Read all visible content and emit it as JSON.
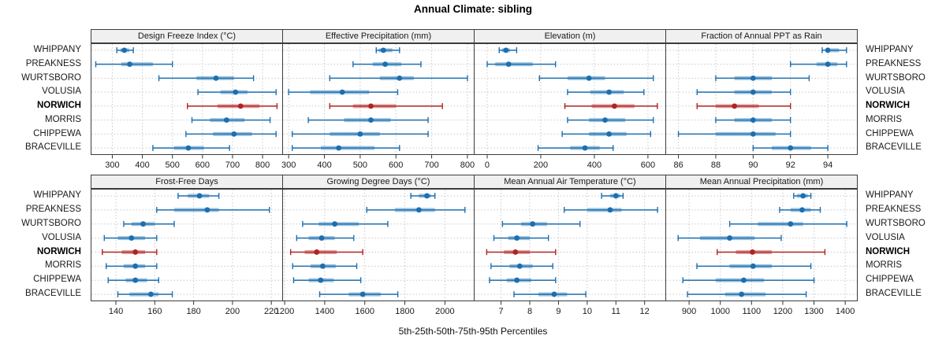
{
  "title": "Annual Climate: sibling",
  "xlabel": "5th-25th-50th-75th-95th Percentiles",
  "stations": [
    "WHIPPANY",
    "PREAKNESS",
    "WURTSBORO",
    "VOLUSIA",
    "NORWICH",
    "MORRIS",
    "CHIPPEWA",
    "BRACEVILLE"
  ],
  "highlight_station": "NORWICH",
  "percentile_levels": [
    "5th",
    "25th",
    "50th",
    "75th",
    "95th"
  ],
  "colors": {
    "series_normal": "#1b6fb0",
    "series_highlight": "#b22222",
    "band_opacity": 0.42,
    "gridline": "#c9c9c9",
    "panel_border": "#3c3c3c",
    "strip_bg": "#f0f0f0",
    "tick": "#333333",
    "text": "#1a1a1a"
  },
  "chart_data": [
    {
      "type": "percentile-dotplot",
      "title": "Design Freeze Index (°C)",
      "row": 0,
      "xlim": [
        228,
        868
      ],
      "ticks": [
        300,
        400,
        500,
        600,
        700,
        800
      ],
      "tick_labels": [
        "300",
        "400",
        "500",
        "600",
        "700",
        "800"
      ],
      "values": [
        [
          315,
          327,
          340,
          356,
          370
        ],
        [
          245,
          330,
          358,
          435,
          500
        ],
        [
          455,
          580,
          645,
          705,
          770
        ],
        [
          585,
          660,
          710,
          750,
          845
        ],
        [
          550,
          650,
          727,
          790,
          848
        ],
        [
          565,
          625,
          680,
          740,
          825
        ],
        [
          545,
          635,
          705,
          765,
          845
        ],
        [
          435,
          505,
          553,
          605,
          690
        ]
      ]
    },
    {
      "type": "percentile-dotplot",
      "title": "Effective Precipitation (mm)",
      "row": 0,
      "xlim": [
        282,
        820
      ],
      "ticks": [
        300,
        400,
        500,
        600,
        700,
        800
      ],
      "tick_labels": [
        "300",
        "400",
        "500",
        "600",
        "700",
        "800"
      ],
      "values": [
        [
          545,
          552,
          565,
          590,
          610
        ],
        [
          480,
          535,
          570,
          615,
          670
        ],
        [
          415,
          555,
          610,
          650,
          800
        ],
        [
          300,
          360,
          450,
          525,
          605
        ],
        [
          415,
          480,
          530,
          600,
          730
        ],
        [
          355,
          455,
          530,
          585,
          690
        ],
        [
          310,
          415,
          500,
          555,
          690
        ],
        [
          310,
          390,
          440,
          540,
          610
        ]
      ]
    },
    {
      "type": "percentile-dotplot",
      "title": "Elevation (m)",
      "row": 0,
      "xlim": [
        -50,
        668
      ],
      "ticks": [
        0,
        200,
        400,
        600
      ],
      "tick_labels": [
        "0",
        "200",
        "400",
        "600"
      ],
      "values": [
        [
          45,
          55,
          70,
          85,
          110
        ],
        [
          0,
          30,
          80,
          170,
          255
        ],
        [
          195,
          300,
          380,
          440,
          620
        ],
        [
          300,
          385,
          455,
          510,
          585
        ],
        [
          290,
          390,
          475,
          550,
          635
        ],
        [
          300,
          380,
          440,
          515,
          620
        ],
        [
          280,
          380,
          455,
          520,
          610
        ],
        [
          190,
          310,
          365,
          420,
          470
        ]
      ]
    },
    {
      "type": "percentile-dotplot",
      "title": "Fraction of Annual PPT as Rain",
      "row": 0,
      "xlim": [
        85.3,
        95.6
      ],
      "ticks": [
        86,
        88,
        90,
        92,
        94
      ],
      "tick_labels": [
        "86",
        "88",
        "90",
        "92",
        "94"
      ],
      "values": [
        [
          93.7,
          93.9,
          94.0,
          94.6,
          95.0
        ],
        [
          92.0,
          93.4,
          94.0,
          94.5,
          95.0
        ],
        [
          88.0,
          89.0,
          90.0,
          91.0,
          93.0
        ],
        [
          87.0,
          89.0,
          90.0,
          91.0,
          92.0
        ],
        [
          87.0,
          88.0,
          89.0,
          90.3,
          92.0
        ],
        [
          88.0,
          89.0,
          90.0,
          91.0,
          92.0
        ],
        [
          86.0,
          88.0,
          90.0,
          91.2,
          92.0
        ],
        [
          90.0,
          91.0,
          92.0,
          93.1,
          94.0
        ]
      ]
    },
    {
      "type": "percentile-dotplot",
      "title": "Frost-Free Days",
      "row": 1,
      "xlim": [
        127,
        226
      ],
      "ticks": [
        140,
        160,
        180,
        200,
        220
      ],
      "tick_labels": [
        "140",
        "160",
        "180",
        "200",
        "220"
      ],
      "values": [
        [
          172,
          177,
          183,
          188,
          193
        ],
        [
          161,
          170,
          187,
          193,
          219
        ],
        [
          144,
          148,
          154,
          160,
          170
        ],
        [
          134,
          141,
          148,
          155,
          161
        ],
        [
          133,
          143,
          150,
          155,
          161
        ],
        [
          135,
          144,
          150,
          155,
          161
        ],
        [
          136,
          145,
          150,
          156,
          162
        ],
        [
          141,
          147,
          158,
          162,
          169
        ]
      ]
    },
    {
      "type": "percentile-dotplot",
      "title": "Growing Degree Days (°C)",
      "row": 1,
      "xlim": [
        1188,
        2148
      ],
      "ticks": [
        1200,
        1400,
        1600,
        1800,
        2000
      ],
      "tick_labels": [
        "1200",
        "1400",
        "1600",
        "1800",
        "2000"
      ],
      "values": [
        [
          1830,
          1870,
          1910,
          1930,
          1950
        ],
        [
          1610,
          1750,
          1870,
          1950,
          2100
        ],
        [
          1290,
          1370,
          1450,
          1570,
          1715
        ],
        [
          1260,
          1320,
          1385,
          1450,
          1545
        ],
        [
          1230,
          1300,
          1360,
          1460,
          1590
        ],
        [
          1240,
          1330,
          1390,
          1455,
          1560
        ],
        [
          1245,
          1320,
          1380,
          1445,
          1580
        ],
        [
          1375,
          1520,
          1590,
          1680,
          1765
        ]
      ]
    },
    {
      "type": "percentile-dotplot",
      "title": "Mean Annual Air Temperature (°C)",
      "row": 1,
      "xlim": [
        6.05,
        12.75
      ],
      "ticks": [
        7,
        8,
        9,
        10,
        11,
        12
      ],
      "tick_labels": [
        "7",
        "8",
        "9",
        "10",
        "11",
        "12"
      ],
      "values": [
        [
          10.5,
          10.8,
          11.0,
          11.15,
          11.25
        ],
        [
          9.2,
          10.0,
          10.8,
          11.2,
          12.45
        ],
        [
          7.05,
          7.7,
          8.1,
          8.6,
          9.75
        ],
        [
          6.75,
          7.25,
          7.55,
          8.0,
          8.65
        ],
        [
          6.5,
          7.1,
          7.5,
          8.0,
          8.9
        ],
        [
          6.65,
          7.3,
          7.65,
          8.1,
          8.8
        ],
        [
          6.6,
          7.2,
          7.55,
          8.05,
          8.9
        ],
        [
          7.45,
          8.3,
          8.85,
          9.3,
          9.95
        ]
      ]
    },
    {
      "type": "percentile-dotplot",
      "title": "Mean Annual Precipitation (mm)",
      "row": 1,
      "xlim": [
        824,
        1440
      ],
      "ticks": [
        900,
        1000,
        1100,
        1200,
        1300,
        1400
      ],
      "tick_labels": [
        "900",
        "1000",
        "1100",
        "1200",
        "1300",
        "1400"
      ],
      "values": [
        [
          1235,
          1245,
          1265,
          1280,
          1290
        ],
        [
          1190,
          1225,
          1262,
          1290,
          1320
        ],
        [
          1030,
          1120,
          1225,
          1265,
          1405
        ],
        [
          865,
          935,
          1030,
          1110,
          1195
        ],
        [
          990,
          1050,
          1103,
          1165,
          1335
        ],
        [
          925,
          1030,
          1105,
          1165,
          1290
        ],
        [
          880,
          985,
          1075,
          1140,
          1300
        ],
        [
          895,
          1015,
          1068,
          1145,
          1275
        ]
      ]
    }
  ]
}
